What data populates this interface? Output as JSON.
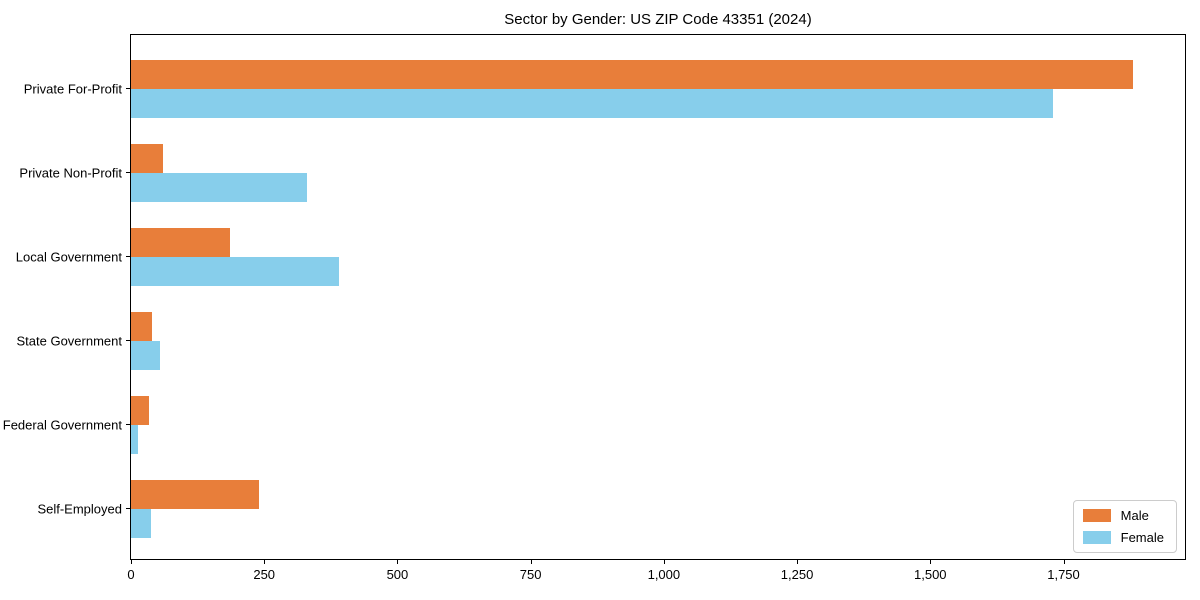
{
  "chart_data": {
    "type": "bar",
    "orientation": "horizontal",
    "title": "Sector by Gender: US ZIP Code 43351 (2024)",
    "xlabel": "",
    "ylabel": "",
    "categories": [
      "Private For-Profit",
      "Private Non-Profit",
      "Local Government",
      "State Government",
      "Federal Government",
      "Self-Employed"
    ],
    "series": [
      {
        "name": "Male",
        "color": "#E87E3A",
        "values": [
          1880,
          60,
          185,
          40,
          33,
          240
        ]
      },
      {
        "name": "Female",
        "color": "#87CEEB",
        "values": [
          1730,
          330,
          390,
          55,
          13,
          38
        ]
      }
    ],
    "xlim": [
      0,
      1978
    ],
    "xticks": [
      0,
      250,
      500,
      750,
      1000,
      1250,
      1500,
      1750
    ],
    "xtick_labels": [
      "0",
      "250",
      "500",
      "750",
      "1,000",
      "1,250",
      "1,500",
      "1,750"
    ],
    "grid": false,
    "legend_position": "lower right",
    "plot_background": "#ffffff",
    "frame_color": "#000000"
  },
  "legend": {
    "items": [
      {
        "label": "Male",
        "swatch": "male-swatch"
      },
      {
        "label": "Female",
        "swatch": "female-swatch"
      }
    ]
  }
}
